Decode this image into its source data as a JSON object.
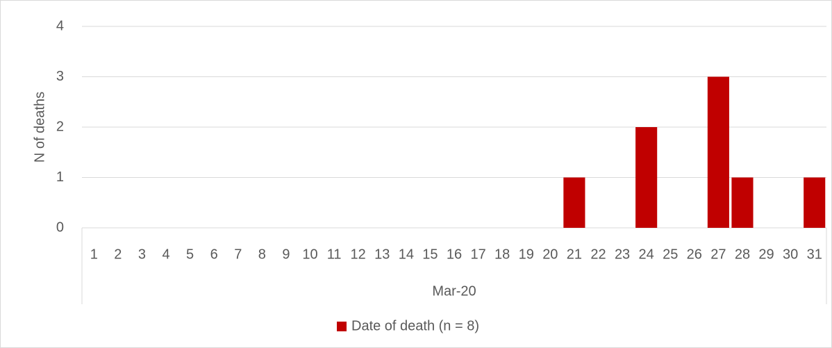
{
  "chart_data": {
    "type": "bar",
    "y_label": "N of deaths",
    "group_label": "Mar-20",
    "categories": [
      "1",
      "2",
      "3",
      "4",
      "5",
      "6",
      "7",
      "8",
      "9",
      "10",
      "11",
      "12",
      "13",
      "14",
      "15",
      "16",
      "17",
      "18",
      "19",
      "20",
      "21",
      "22",
      "23",
      "24",
      "25",
      "26",
      "27",
      "28",
      "29",
      "30",
      "31"
    ],
    "series": [
      {
        "name": "Date of death (n = 8)",
        "color": "#c00000",
        "values": [
          0,
          0,
          0,
          0,
          0,
          0,
          0,
          0,
          0,
          0,
          0,
          0,
          0,
          0,
          0,
          0,
          0,
          0,
          0,
          0,
          1,
          0,
          0,
          2,
          0,
          0,
          3,
          1,
          0,
          0,
          1
        ]
      }
    ],
    "ylim": [
      0,
      4
    ],
    "yticks": [
      0,
      1,
      2,
      3,
      4
    ],
    "grid": true,
    "legend": "bottom"
  }
}
